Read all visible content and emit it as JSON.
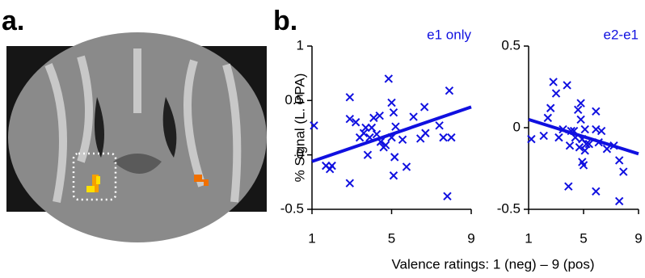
{
  "panel_labels": [
    "a.",
    "b."
  ],
  "xlabel": "Valence ratings: 1 (neg) – 9 (pos)",
  "chart_data": [
    {
      "type": "scatter",
      "title": "e1 only",
      "ylabel": "% Signal (L. PPA)",
      "color": "#1010e0",
      "xlim": [
        1,
        9
      ],
      "xticks": [
        1,
        5,
        9
      ],
      "ylim": [
        -0.5,
        1
      ],
      "yticks": [
        -0.5,
        0,
        0.5,
        1
      ],
      "x": [
        1.1,
        1.7,
        1.9,
        2.0,
        2.9,
        2.9,
        2.9,
        3.2,
        3.4,
        3.6,
        3.7,
        3.8,
        3.9,
        4.0,
        4.1,
        4.25,
        4.4,
        4.45,
        4.6,
        4.7,
        4.85,
        5.0,
        5.1,
        5.0,
        5.1,
        5.15,
        5.2,
        5.55,
        5.75,
        6.1,
        6.45,
        6.65,
        6.7,
        7.4,
        7.6,
        7.8,
        7.9,
        8.0
      ],
      "values": [
        0.27,
        -0.1,
        -0.13,
        -0.1,
        0.33,
        -0.26,
        0.53,
        0.3,
        0.16,
        0.2,
        0.25,
        0.0,
        0.16,
        0.25,
        0.34,
        0.19,
        0.36,
        0.12,
        0.07,
        0.09,
        0.7,
        0.48,
        0.39,
        0.16,
        -0.19,
        -0.02,
        0.26,
        0.14,
        -0.11,
        0.35,
        0.15,
        0.44,
        0.2,
        0.27,
        0.16,
        -0.38,
        0.59,
        0.16
      ],
      "fit_x": [
        1,
        9
      ],
      "fit_values": [
        -0.06,
        0.44
      ]
    },
    {
      "type": "scatter",
      "title": "e2-e1",
      "color": "#1010e0",
      "xlim": [
        1,
        9
      ],
      "xticks": [
        1,
        5,
        9
      ],
      "ylim": [
        -0.5,
        0.5
      ],
      "yticks": [
        -0.5,
        0,
        0.5
      ],
      "x": [
        1.2,
        2.1,
        2.4,
        2.6,
        2.8,
        3.0,
        3.2,
        3.5,
        3.8,
        3.9,
        4.0,
        4.1,
        4.3,
        4.4,
        4.6,
        4.7,
        4.8,
        4.8,
        4.9,
        4.9,
        5.0,
        5.1,
        5.1,
        5.2,
        5.4,
        5.9,
        5.9,
        5.9,
        6.1,
        6.3,
        6.7,
        7.2,
        7.6,
        7.9,
        7.6
      ],
      "values": [
        -0.07,
        -0.05,
        0.06,
        0.12,
        0.28,
        0.21,
        -0.06,
        -0.01,
        0.26,
        -0.36,
        -0.11,
        -0.02,
        -0.02,
        -0.06,
        0.11,
        -0.12,
        0.05,
        0.15,
        -0.07,
        -0.21,
        -0.23,
        -0.01,
        -0.14,
        -0.1,
        -0.1,
        0.1,
        -0.39,
        -0.01,
        -0.09,
        -0.02,
        -0.13,
        -0.11,
        -0.45,
        -0.27,
        -0.2
      ],
      "fit_x": [
        1,
        9
      ],
      "fit_values": [
        0.05,
        -0.16
      ]
    }
  ]
}
